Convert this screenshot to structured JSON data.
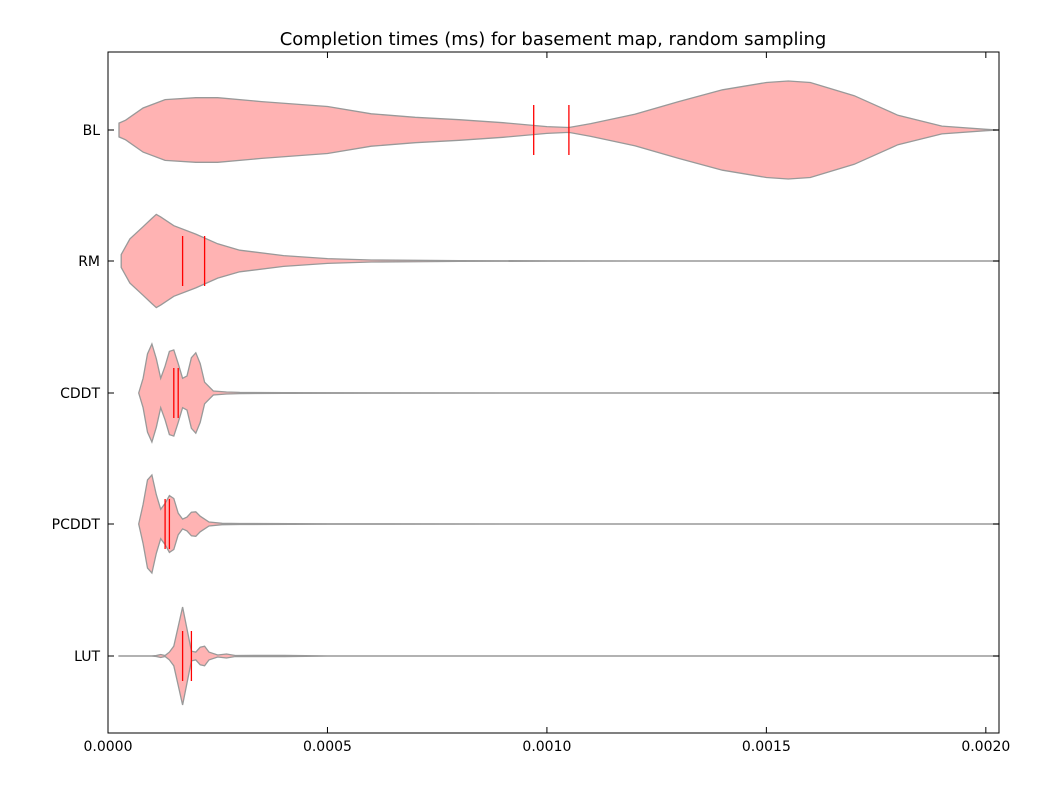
{
  "chart_data": {
    "type": "violin",
    "orientation": "horizontal",
    "title": "Completion times (ms) for basement map, random sampling",
    "xlabel": "",
    "ylabel": "",
    "xlim": [
      0.0,
      0.00203
    ],
    "xticks": [
      0.0,
      0.0005,
      0.001,
      0.0015,
      0.002
    ],
    "xtick_labels": [
      "0.0000",
      "0.0005",
      "0.0010",
      "0.0015",
      "0.0020"
    ],
    "grid": false,
    "fill_color": "#ff9999",
    "edge_color": "#999999",
    "marker_color": "#ff0000",
    "series": [
      {
        "name": "BL",
        "min": 2.5e-05,
        "max": 0.00203,
        "median": 0.00097,
        "mean": 0.00105,
        "density": [
          [
            2.5e-05,
            0.14
          ],
          [
            4e-05,
            0.2
          ],
          [
            8e-05,
            0.45
          ],
          [
            0.00013,
            0.62
          ],
          [
            0.0002,
            0.66
          ],
          [
            0.00025,
            0.66
          ],
          [
            0.00035,
            0.58
          ],
          [
            0.0005,
            0.48
          ],
          [
            0.0006,
            0.33
          ],
          [
            0.0007,
            0.26
          ],
          [
            0.0008,
            0.21
          ],
          [
            0.0009,
            0.15
          ],
          [
            0.001,
            0.07
          ],
          [
            0.00105,
            0.05
          ],
          [
            0.0011,
            0.13
          ],
          [
            0.0012,
            0.32
          ],
          [
            0.0013,
            0.58
          ],
          [
            0.0014,
            0.82
          ],
          [
            0.0015,
            0.97
          ],
          [
            0.00155,
            1.0
          ],
          [
            0.0016,
            0.97
          ],
          [
            0.0017,
            0.7
          ],
          [
            0.0018,
            0.3
          ],
          [
            0.0019,
            0.08
          ],
          [
            0.002,
            0.015
          ],
          [
            0.00203,
            0.0
          ]
        ]
      },
      {
        "name": "RM",
        "min": 3e-05,
        "max": 0.00203,
        "median": 0.00017,
        "mean": 0.00022,
        "density": [
          [
            3e-05,
            0.13
          ],
          [
            5e-05,
            0.45
          ],
          [
            8e-05,
            0.7
          ],
          [
            0.0001,
            0.87
          ],
          [
            0.00011,
            0.95
          ],
          [
            0.00012,
            0.9
          ],
          [
            0.00015,
            0.72
          ],
          [
            0.0002,
            0.55
          ],
          [
            0.00025,
            0.35
          ],
          [
            0.0003,
            0.22
          ],
          [
            0.0004,
            0.11
          ],
          [
            0.0005,
            0.05
          ],
          [
            0.0006,
            0.02
          ],
          [
            0.0008,
            0.008
          ],
          [
            0.001,
            0.004
          ],
          [
            0.0015,
            0.003
          ],
          [
            0.00203,
            0.002
          ]
        ]
      },
      {
        "name": "CDDT",
        "min": 7e-05,
        "max": 0.00203,
        "median": 0.00015,
        "mean": 0.00016,
        "density": [
          [
            7e-05,
            0.0
          ],
          [
            8e-05,
            0.3
          ],
          [
            9e-05,
            0.8
          ],
          [
            0.0001,
            1.0
          ],
          [
            0.00011,
            0.7
          ],
          [
            0.00012,
            0.3
          ],
          [
            0.00013,
            0.55
          ],
          [
            0.00014,
            0.85
          ],
          [
            0.00015,
            0.88
          ],
          [
            0.00016,
            0.6
          ],
          [
            0.00017,
            0.3
          ],
          [
            0.00018,
            0.35
          ],
          [
            0.00019,
            0.72
          ],
          [
            0.0002,
            0.82
          ],
          [
            0.00021,
            0.6
          ],
          [
            0.00022,
            0.22
          ],
          [
            0.00024,
            0.04
          ],
          [
            0.00027,
            0.02
          ],
          [
            0.0003,
            0.012
          ],
          [
            0.0004,
            0.008
          ],
          [
            0.0006,
            0.004
          ],
          [
            0.001,
            0.003
          ],
          [
            0.00203,
            0.002
          ]
        ]
      },
      {
        "name": "PCDDT",
        "min": 7e-05,
        "max": 0.00203,
        "median": 0.00013,
        "mean": 0.00014,
        "density": [
          [
            7e-05,
            0.0
          ],
          [
            8e-05,
            0.4
          ],
          [
            9e-05,
            0.9
          ],
          [
            0.0001,
            1.0
          ],
          [
            0.00011,
            0.6
          ],
          [
            0.00012,
            0.3
          ],
          [
            0.00013,
            0.42
          ],
          [
            0.00014,
            0.58
          ],
          [
            0.00015,
            0.52
          ],
          [
            0.00016,
            0.22
          ],
          [
            0.00017,
            0.1
          ],
          [
            0.00018,
            0.14
          ],
          [
            0.00019,
            0.24
          ],
          [
            0.0002,
            0.25
          ],
          [
            0.00021,
            0.16
          ],
          [
            0.00023,
            0.04
          ],
          [
            0.00026,
            0.015
          ],
          [
            0.0003,
            0.01
          ],
          [
            0.0005,
            0.005
          ],
          [
            0.001,
            0.003
          ],
          [
            0.00203,
            0.002
          ]
        ]
      },
      {
        "name": "LUT",
        "min": 2.5e-05,
        "max": 0.00203,
        "median": 0.00017,
        "mean": 0.00019,
        "density": [
          [
            2.5e-05,
            0.002
          ],
          [
            0.0001,
            0.002
          ],
          [
            0.00011,
            0.01
          ],
          [
            0.00012,
            0.03
          ],
          [
            0.00013,
            0.01
          ],
          [
            0.00014,
            0.08
          ],
          [
            0.00015,
            0.2
          ],
          [
            0.00016,
            0.6
          ],
          [
            0.00017,
            1.0
          ],
          [
            0.00018,
            0.55
          ],
          [
            0.00019,
            0.1
          ],
          [
            0.0002,
            0.08
          ],
          [
            0.00021,
            0.18
          ],
          [
            0.00022,
            0.2
          ],
          [
            0.00023,
            0.08
          ],
          [
            0.00025,
            0.02
          ],
          [
            0.00027,
            0.04
          ],
          [
            0.00029,
            0.01
          ],
          [
            0.0004,
            0.012
          ],
          [
            0.0005,
            0.003
          ],
          [
            0.001,
            0.002
          ],
          [
            0.00203,
            0.002
          ]
        ]
      }
    ]
  }
}
